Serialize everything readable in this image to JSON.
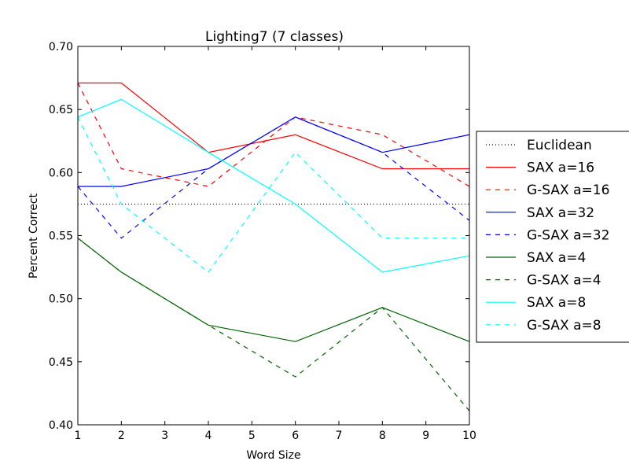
{
  "chart_data": {
    "type": "line",
    "title": "Lighting7 (7 classes)",
    "xlabel": "Word Size",
    "ylabel": "Percent Correct",
    "xlim": [
      1,
      10
    ],
    "ylim": [
      0.4,
      0.7
    ],
    "xticks": [
      1,
      2,
      3,
      4,
      5,
      6,
      7,
      8,
      9,
      10
    ],
    "yticks": [
      0.4,
      0.45,
      0.5,
      0.55,
      0.6,
      0.65,
      0.7
    ],
    "ytick_labels": [
      "0.40",
      "0.45",
      "0.50",
      "0.55",
      "0.60",
      "0.65",
      "0.70"
    ],
    "grid": false,
    "legend_position": "outside-right",
    "x": [
      1,
      2,
      4,
      6,
      8,
      10
    ],
    "series": [
      {
        "name": "Euclidean",
        "color": "#000000",
        "style": "dotted",
        "values": [
          0.575,
          0.575,
          0.575,
          0.575,
          0.575,
          0.575
        ]
      },
      {
        "name": "SAX a=16",
        "color": "#ff0000",
        "style": "solid",
        "values": [
          0.671,
          0.671,
          0.616,
          0.63,
          0.603,
          0.603
        ]
      },
      {
        "name": "G-SAX a=16",
        "color": "#ff0000",
        "style": "dashed",
        "values": [
          0.671,
          0.603,
          0.589,
          0.644,
          0.63,
          0.589
        ]
      },
      {
        "name": "SAX a=32",
        "color": "#0000ff",
        "style": "solid",
        "values": [
          0.589,
          0.589,
          0.603,
          0.644,
          0.616,
          0.63
        ]
      },
      {
        "name": "G-SAX a=32",
        "color": "#0000ff",
        "style": "dashed",
        "values": [
          0.589,
          0.548,
          0.603,
          0.644,
          0.616,
          0.562
        ]
      },
      {
        "name": "SAX a=4",
        "color": "#006400",
        "style": "solid",
        "values": [
          0.548,
          0.521,
          0.479,
          0.466,
          0.493,
          0.466
        ]
      },
      {
        "name": "G-SAX a=4",
        "color": "#006400",
        "style": "dashed",
        "values": [
          0.548,
          0.521,
          0.479,
          0.438,
          0.493,
          0.411
        ]
      },
      {
        "name": "SAX a=8",
        "color": "#00ffff",
        "style": "solid",
        "values": [
          0.644,
          0.658,
          0.616,
          0.575,
          0.521,
          0.534
        ]
      },
      {
        "name": "G-SAX a=8",
        "color": "#00ffff",
        "style": "dashed",
        "values": [
          0.644,
          0.575,
          0.521,
          0.616,
          0.548,
          0.548
        ]
      }
    ]
  }
}
